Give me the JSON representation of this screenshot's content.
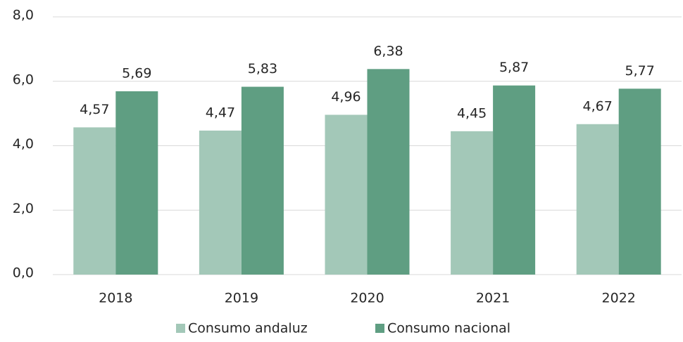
{
  "chart_data": {
    "type": "bar",
    "categories": [
      "2018",
      "2019",
      "2020",
      "2021",
      "2022"
    ],
    "series": [
      {
        "name": "Consumo andaluz",
        "color": "#a3c8b8",
        "values": [
          4.57,
          4.47,
          4.96,
          4.45,
          4.67
        ],
        "value_labels": [
          "4,57",
          "4,47",
          "4,96",
          "4,45",
          "4,67"
        ]
      },
      {
        "name": "Consumo nacional",
        "color": "#5f9e82",
        "values": [
          5.69,
          5.83,
          6.38,
          5.87,
          5.77
        ],
        "value_labels": [
          "5,69",
          "5,83",
          "6,38",
          "5,87",
          "5,77"
        ]
      }
    ],
    "ylim": [
      0,
      8
    ],
    "yticks": [
      {
        "value": 0,
        "label": "0,0"
      },
      {
        "value": 2,
        "label": "2,0"
      },
      {
        "value": 4,
        "label": "4,0"
      },
      {
        "value": 6,
        "label": "6,0"
      },
      {
        "value": 8,
        "label": "8,0"
      }
    ],
    "grid": true,
    "legend": "bottom"
  }
}
